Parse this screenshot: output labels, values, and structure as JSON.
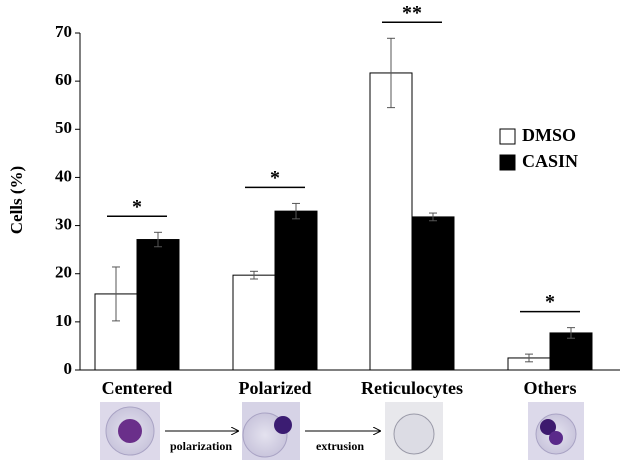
{
  "chart_data": {
    "type": "bar",
    "ylabel": "Cells (%)",
    "categories": [
      "Centered",
      "Polarized",
      "Reticulocytes",
      "Others"
    ],
    "series": [
      {
        "name": "DMSO",
        "color": "#ffffff",
        "values": [
          15.8,
          19.7,
          61.7,
          2.5
        ],
        "errors": [
          5.6,
          0.8,
          7.2,
          0.8
        ]
      },
      {
        "name": "CASIN",
        "color": "#000000",
        "values": [
          27.1,
          33.0,
          31.8,
          7.7
        ],
        "errors": [
          1.5,
          1.6,
          0.8,
          1.1
        ]
      }
    ],
    "significance": [
      "*",
      "*",
      "**",
      "*"
    ],
    "stage_transitions": [
      "polarization",
      "extrusion"
    ],
    "ylim": [
      0,
      70
    ],
    "yticks": [
      0,
      10,
      20,
      30,
      40,
      50,
      60,
      70
    ],
    "legend": "right"
  }
}
